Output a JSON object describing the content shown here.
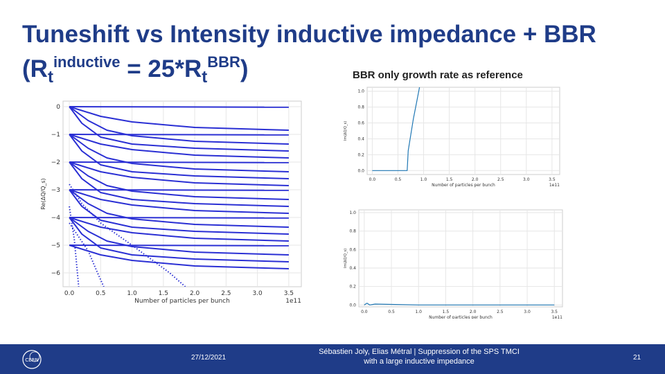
{
  "title": {
    "line1": "Tuneshift vs Intensity inductive impedance + BBR",
    "open": "(R",
    "sub1": "t",
    "sup1": "inductive",
    "mid": " = 25*R",
    "sub2": "t",
    "sup2": "BBR",
    "close": ")"
  },
  "reference_label": "BBR only growth rate as reference",
  "footer": {
    "date": "27/12/2021",
    "authors_line1": "Sébastien Joly, Elias Métral | Suppression of the SPS TMCI",
    "authors_line2": "with a large inductive impedance",
    "page": "21",
    "logo_text": "CERN"
  },
  "chart_data": [
    {
      "type": "line",
      "title": "",
      "xlabel": "Number of particles per bunch",
      "ylabel": "Re(ΔQ/Q_s)",
      "xlim": [
        -0.1,
        3.7
      ],
      "ylim": [
        -6.5,
        0.2
      ],
      "xticks": [
        "0.0",
        "0.5",
        "1.0",
        "1.5",
        "2.0",
        "2.5",
        "3.0",
        "3.5"
      ],
      "yticks": [
        "0",
        "−1",
        "−2",
        "−3",
        "−4",
        "−5",
        "−6"
      ],
      "offset_label": "1e11",
      "color": "#2a2fd4",
      "series": [
        {
          "name": "m0-a",
          "points": [
            [
              0,
              0
            ],
            [
              3.5,
              -0.02
            ]
          ]
        },
        {
          "name": "m0-b",
          "points": [
            [
              0,
              0
            ],
            [
              0.5,
              -0.35
            ],
            [
              1,
              -0.55
            ],
            [
              2,
              -0.75
            ],
            [
              3.5,
              -0.85
            ]
          ]
        },
        {
          "name": "m0-c",
          "points": [
            [
              0,
              0
            ],
            [
              0.3,
              -0.5
            ],
            [
              0.6,
              -0.85
            ],
            [
              1,
              -1.05
            ],
            [
              2,
              -1.25
            ],
            [
              3.5,
              -1.35
            ]
          ]
        },
        {
          "name": "m0-d",
          "points": [
            [
              0,
              0
            ],
            [
              0.2,
              -0.6
            ],
            [
              0.5,
              -1.1
            ],
            [
              1,
              -1.35
            ],
            [
              2,
              -1.5
            ],
            [
              3.5,
              -1.6
            ]
          ]
        },
        {
          "name": "m-1-a",
          "points": [
            [
              0,
              -1
            ],
            [
              3.5,
              -1.02
            ]
          ]
        },
        {
          "name": "m-1-b",
          "points": [
            [
              0,
              -1
            ],
            [
              0.5,
              -1.35
            ],
            [
              1,
              -1.55
            ],
            [
              2,
              -1.75
            ],
            [
              3.5,
              -1.85
            ]
          ]
        },
        {
          "name": "m-1-c",
          "points": [
            [
              0,
              -1
            ],
            [
              0.3,
              -1.5
            ],
            [
              0.6,
              -1.85
            ],
            [
              1,
              -2.05
            ],
            [
              2,
              -2.25
            ],
            [
              3.5,
              -2.35
            ]
          ]
        },
        {
          "name": "m-1-d",
          "points": [
            [
              0,
              -1
            ],
            [
              0.2,
              -1.6
            ],
            [
              0.5,
              -2.1
            ],
            [
              1,
              -2.35
            ],
            [
              2,
              -2.5
            ],
            [
              3.5,
              -2.6
            ]
          ]
        },
        {
          "name": "m-2-a",
          "points": [
            [
              0,
              -2
            ],
            [
              3.5,
              -2.02
            ]
          ]
        },
        {
          "name": "m-2-b",
          "points": [
            [
              0,
              -2
            ],
            [
              0.5,
              -2.35
            ],
            [
              1,
              -2.55
            ],
            [
              2,
              -2.75
            ],
            [
              3.5,
              -2.85
            ]
          ]
        },
        {
          "name": "m-2-c",
          "points": [
            [
              0,
              -2
            ],
            [
              0.3,
              -2.5
            ],
            [
              0.6,
              -2.85
            ],
            [
              1,
              -3.05
            ],
            [
              2,
              -3.25
            ],
            [
              3.5,
              -3.35
            ]
          ]
        },
        {
          "name": "m-2-d",
          "points": [
            [
              0,
              -2
            ],
            [
              0.2,
              -2.6
            ],
            [
              0.5,
              -3.1
            ],
            [
              1,
              -3.35
            ],
            [
              2,
              -3.5
            ],
            [
              3.5,
              -3.6
            ]
          ]
        },
        {
          "name": "m-3-a",
          "points": [
            [
              0,
              -3
            ],
            [
              3.5,
              -3.02
            ]
          ]
        },
        {
          "name": "m-3-b",
          "points": [
            [
              0,
              -3
            ],
            [
              0.5,
              -3.35
            ],
            [
              1,
              -3.55
            ],
            [
              2,
              -3.75
            ],
            [
              3.5,
              -3.85
            ]
          ]
        },
        {
          "name": "m-3-c",
          "points": [
            [
              0,
              -3
            ],
            [
              0.3,
              -3.5
            ],
            [
              0.6,
              -3.85
            ],
            [
              1,
              -4.05
            ],
            [
              2,
              -4.25
            ],
            [
              3.5,
              -4.35
            ]
          ]
        },
        {
          "name": "m-3-d",
          "points": [
            [
              0,
              -3
            ],
            [
              0.2,
              -3.6
            ],
            [
              0.5,
              -4.1
            ],
            [
              1,
              -4.35
            ],
            [
              2,
              -4.5
            ],
            [
              3.5,
              -4.6
            ]
          ]
        },
        {
          "name": "m-4-a",
          "points": [
            [
              0,
              -4
            ],
            [
              3.5,
              -4.02
            ]
          ]
        },
        {
          "name": "m-4-b",
          "points": [
            [
              0,
              -4
            ],
            [
              0.5,
              -4.35
            ],
            [
              1,
              -4.55
            ],
            [
              2,
              -4.75
            ],
            [
              3.5,
              -4.85
            ]
          ]
        },
        {
          "name": "m-4-c",
          "points": [
            [
              0,
              -4
            ],
            [
              0.3,
              -4.5
            ],
            [
              0.6,
              -4.85
            ],
            [
              1,
              -5.05
            ],
            [
              2,
              -5.25
            ],
            [
              3.5,
              -5.35
            ]
          ]
        },
        {
          "name": "m-4-d",
          "points": [
            [
              0,
              -4
            ],
            [
              0.2,
              -4.6
            ],
            [
              0.5,
              -5.1
            ],
            [
              1,
              -5.35
            ],
            [
              2,
              -5.5
            ],
            [
              3.5,
              -5.6
            ]
          ]
        },
        {
          "name": "m-5-a",
          "points": [
            [
              0,
              -5
            ],
            [
              3.5,
              -5.02
            ]
          ]
        },
        {
          "name": "m-5-b",
          "points": [
            [
              0,
              -5
            ],
            [
              0.5,
              -5.35
            ],
            [
              1,
              -5.55
            ],
            [
              2,
              -5.75
            ],
            [
              3.5,
              -5.85
            ]
          ]
        },
        {
          "name": "dive-1",
          "points": [
            [
              0,
              -2.8
            ],
            [
              0.2,
              -3.5
            ],
            [
              0.5,
              -4.2
            ],
            [
              1,
              -5.0
            ],
            [
              1.6,
              -6.0
            ],
            [
              1.85,
              -6.5
            ]
          ]
        },
        {
          "name": "dive-2",
          "points": [
            [
              0,
              -4.2
            ],
            [
              0.3,
              -5.2
            ],
            [
              0.45,
              -6.0
            ],
            [
              0.55,
              -6.5
            ]
          ]
        },
        {
          "name": "dive-3",
          "points": [
            [
              0,
              -3.6
            ],
            [
              0.08,
              -4.8
            ],
            [
              0.15,
              -6.5
            ]
          ]
        }
      ]
    },
    {
      "type": "line",
      "title": "",
      "xlabel": "Number of particles per bunch",
      "ylabel": "Im(ΔQ/Q_s)",
      "xlim": [
        -0.1,
        3.65
      ],
      "ylim": [
        -0.05,
        1.05
      ],
      "xticks": [
        "0.0",
        "0.5",
        "1.0",
        "1.5",
        "2.0",
        "2.5",
        "3.0",
        "3.5"
      ],
      "yticks": [
        "0.0",
        "0.2",
        "0.4",
        "0.6",
        "0.8",
        "1.0"
      ],
      "offset_label": "1e11",
      "color": "#1f77b4",
      "series": [
        {
          "name": "growth",
          "points": [
            [
              0,
              0
            ],
            [
              0.55,
              0
            ],
            [
              0.68,
              0.0
            ],
            [
              0.7,
              0.25
            ],
            [
              0.75,
              0.45
            ],
            [
              0.8,
              0.65
            ],
            [
              0.86,
              0.85
            ],
            [
              0.92,
              1.05
            ]
          ]
        }
      ]
    },
    {
      "type": "line",
      "title": "",
      "xlabel": "Number of particles per bunch",
      "ylabel": "Im(ΔQ/Q_s)",
      "xlim": [
        -0.1,
        3.65
      ],
      "ylim": [
        -0.02,
        1.03
      ],
      "xticks": [
        "0.0",
        "0.5",
        "1.0",
        "1.5",
        "2.0",
        "2.5",
        "3.0",
        "3.5"
      ],
      "yticks": [
        "0.0",
        "0.2",
        "0.4",
        "0.6",
        "0.8",
        "1.0"
      ],
      "offset_label": "1e11",
      "color": "#1f77b4",
      "series": [
        {
          "name": "growth",
          "points": [
            [
              0,
              0
            ],
            [
              0.05,
              0.02
            ],
            [
              0.1,
              0
            ],
            [
              0.2,
              0.01
            ],
            [
              1.0,
              0
            ],
            [
              3.5,
              0
            ]
          ]
        }
      ]
    }
  ]
}
